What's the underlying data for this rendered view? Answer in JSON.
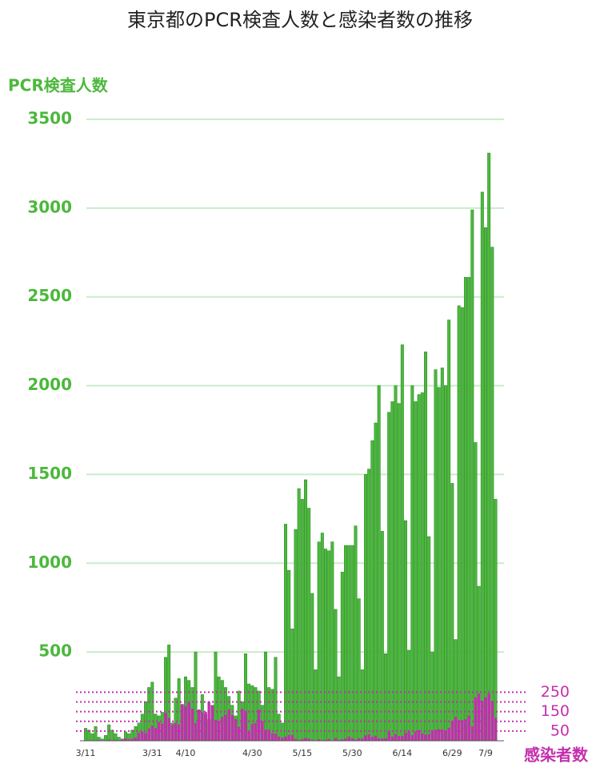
{
  "chart_data": {
    "type": "bar",
    "title": "東京都のPCR検査人数と感染者数の推移",
    "y_label": "PCR検査人数",
    "y2_label": "感染者数",
    "categories": [
      "3/11",
      null,
      null,
      null,
      null,
      null,
      null,
      null,
      null,
      null,
      null,
      null,
      null,
      null,
      null,
      null,
      null,
      null,
      null,
      null,
      "3/31",
      null,
      null,
      null,
      null,
      null,
      null,
      null,
      null,
      null,
      "4/10",
      null,
      null,
      null,
      null,
      null,
      null,
      null,
      null,
      null,
      null,
      null,
      null,
      null,
      null,
      null,
      null,
      null,
      null,
      null,
      "4/30",
      null,
      null,
      null,
      null,
      null,
      null,
      null,
      null,
      null,
      null,
      null,
      null,
      null,
      null,
      "5/15",
      null,
      null,
      null,
      null,
      null,
      null,
      null,
      null,
      null,
      null,
      null,
      null,
      null,
      null,
      "5/30",
      null,
      null,
      null,
      null,
      null,
      null,
      null,
      null,
      null,
      null,
      null,
      null,
      null,
      null,
      "6/14",
      null,
      null,
      null,
      null,
      null,
      null,
      null,
      null,
      null,
      null,
      null,
      null,
      null,
      null,
      "6/29",
      null,
      null,
      null,
      null,
      null,
      null,
      null,
      null,
      null,
      "7/9",
      null,
      null,
      null
    ],
    "series": [
      {
        "color": "#4cb83c",
        "values": [
          70,
          60,
          40,
          80,
          20,
          10,
          30,
          90,
          60,
          40,
          20,
          10,
          50,
          40,
          60,
          80,
          100,
          150,
          220,
          300,
          330,
          150,
          140,
          160,
          470,
          540,
          100,
          240,
          350,
          200,
          360,
          340,
          300,
          500,
          170,
          260,
          150,
          120,
          200,
          500,
          360,
          340,
          300,
          250,
          200,
          140,
          280,
          220,
          490,
          320,
          310,
          300,
          280,
          200,
          500,
          300,
          290,
          470,
          150,
          100,
          1220,
          960,
          630,
          1190,
          1420,
          1360,
          1470,
          1310,
          830,
          400,
          1120,
          1170,
          1080,
          1070,
          1120,
          740,
          360,
          950,
          1100,
          1100,
          1100,
          1210,
          800,
          400,
          1500,
          1530,
          1690,
          1790,
          2000,
          1180,
          490,
          1850,
          1910,
          2000,
          1900,
          2230,
          1240,
          510,
          2000,
          1910,
          1950,
          1960,
          2190,
          1150,
          500,
          2090,
          1990,
          2100,
          2000,
          2370,
          1450,
          570,
          2450,
          2440,
          2610,
          2610,
          2990,
          1680,
          870,
          3090,
          2890,
          3310,
          2780,
          1360
        ]
      },
      {
        "color": "#c42fae",
        "axis": "y2",
        "values": [
          2,
          3,
          1,
          2,
          4,
          1,
          0,
          7,
          3,
          5,
          2,
          7,
          12,
          9,
          11,
          17,
          41,
          47,
          40,
          63,
          78,
          66,
          97,
          89,
          143,
          118,
          83,
          92,
          84,
          189,
          178,
          197,
          166,
          91,
          161,
          146,
          149,
          201,
          181,
          107,
          102,
          123,
          134,
          161,
          132,
          112,
          72,
          165,
          154,
          47,
          87,
          91,
          160,
          102,
          57,
          58,
          39,
          36,
          22,
          15,
          22,
          30,
          30,
          10,
          5,
          9,
          14,
          11,
          5,
          2,
          8,
          3,
          5,
          10,
          2,
          15,
          5,
          8,
          11,
          22,
          14,
          5,
          13,
          12,
          28,
          34,
          20,
          26,
          13,
          12,
          13,
          47,
          22,
          35,
          25,
          24,
          41,
          47,
          29,
          48,
          55,
          39,
          31,
          35,
          54,
          57,
          60,
          58,
          54,
          67,
          102,
          124,
          106,
          107,
          111,
          131,
          75,
          224,
          243,
          206,
          224,
          243,
          206,
          119
        ]
      }
    ],
    "ylim": [
      0,
      3500
    ],
    "yticks": [
      500,
      1000,
      1500,
      2000,
      2500,
      3000,
      3500
    ],
    "y2lim": [
      0,
      3200
    ],
    "y2ticks": [
      50,
      150,
      250
    ],
    "y2minor": [
      100,
      200
    ],
    "grid": true
  }
}
